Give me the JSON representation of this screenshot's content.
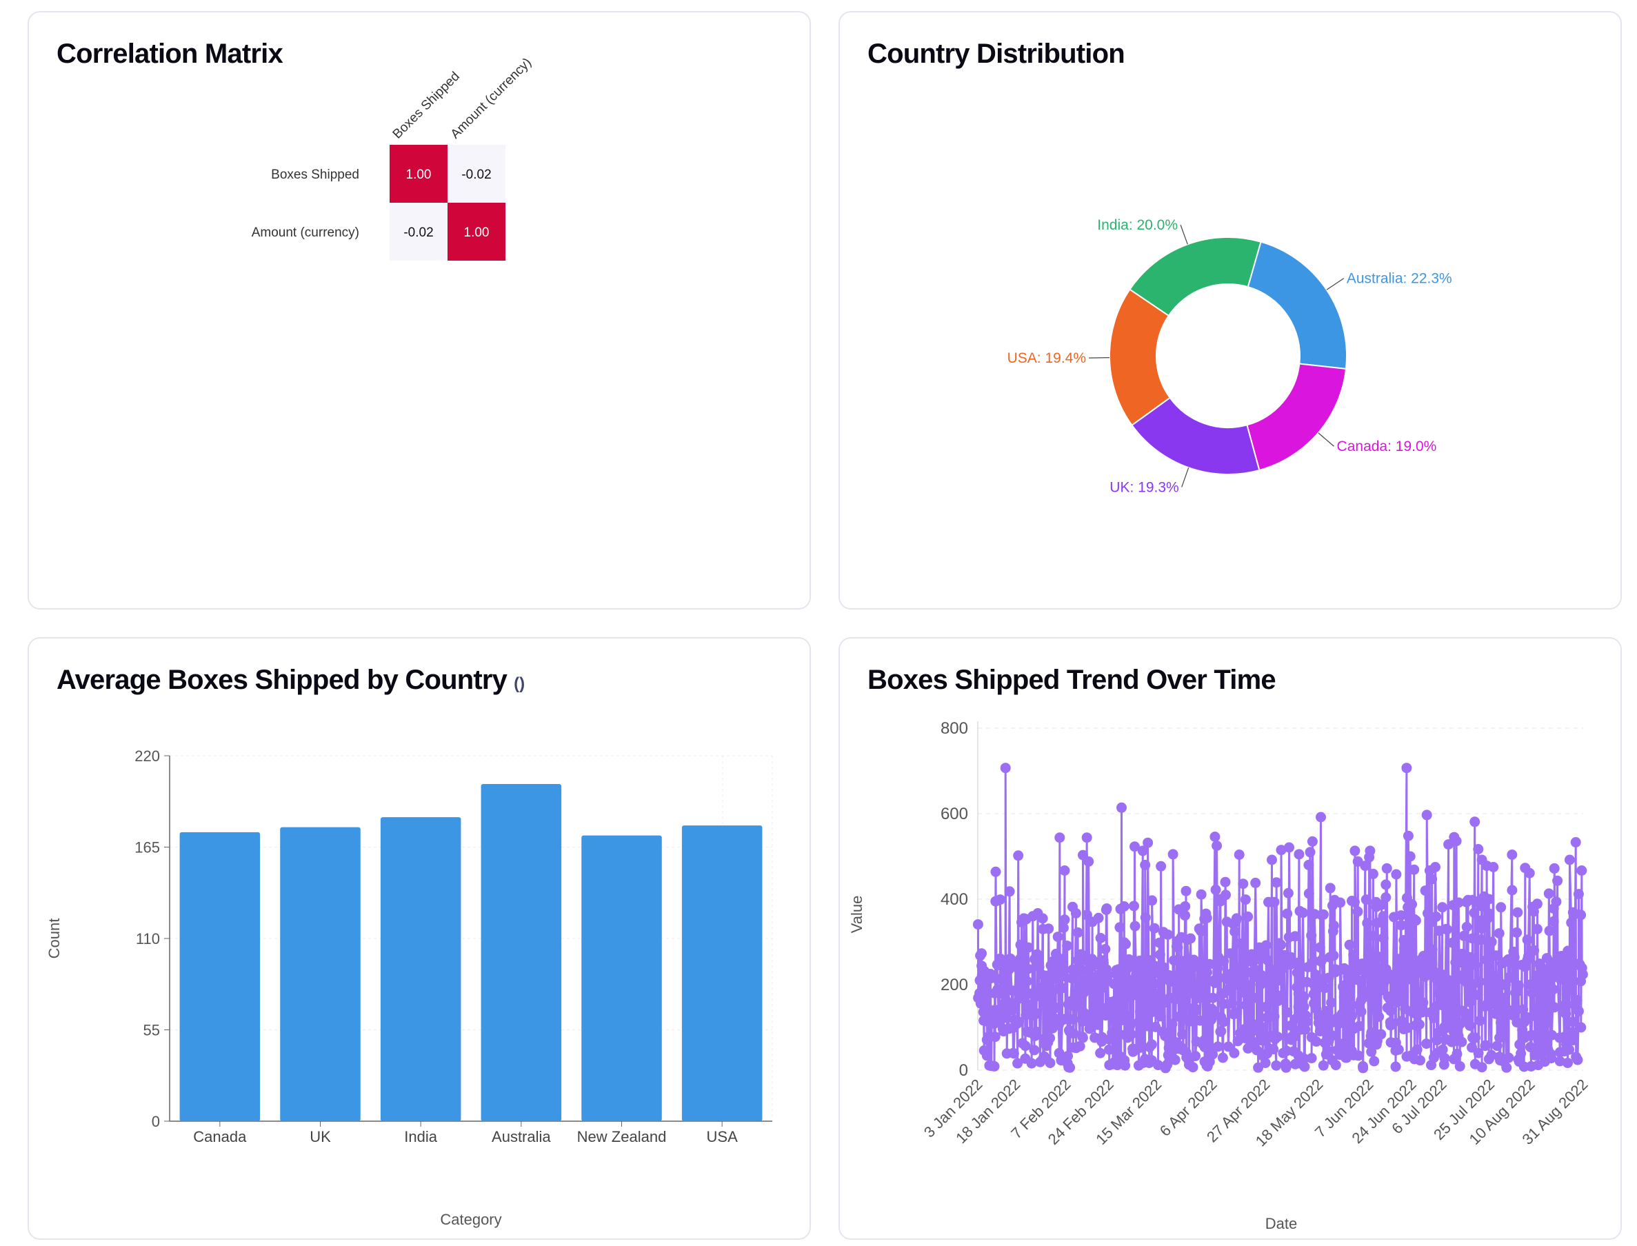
{
  "cards": {
    "correlation": {
      "title": "Correlation Matrix"
    },
    "country": {
      "title": "Country Distribution"
    },
    "average": {
      "title": "Average Boxes Shipped by Country",
      "note": "()"
    },
    "trend": {
      "title": "Boxes Shipped Trend Over Time"
    }
  },
  "chart_data": [
    {
      "type": "heatmap",
      "title": "Correlation Matrix",
      "x_labels": [
        "Boxes Shipped",
        "Amount (currency)"
      ],
      "y_labels": [
        "Boxes Shipped",
        "Amount (currency)"
      ],
      "matrix": [
        [
          1.0,
          -0.02
        ],
        [
          -0.02,
          1.0
        ]
      ],
      "cell_labels": [
        [
          "1.00",
          "-0.02"
        ],
        [
          "-0.02",
          "1.00"
        ]
      ],
      "colors": {
        "high": "#d0053a",
        "low": "#f6f5fb",
        "high_text": "#ffffff",
        "low_text": "#111111"
      }
    },
    {
      "type": "pie",
      "title": "Country Distribution",
      "donut": true,
      "slices": [
        {
          "name": "Australia",
          "value": 22.3,
          "label": "Australia: 22.3%",
          "color": "#3d96e3"
        },
        {
          "name": "Canada",
          "value": 19.0,
          "label": "Canada: 19.0%",
          "color": "#d915de"
        },
        {
          "name": "UK",
          "value": 19.3,
          "label": "UK: 19.3%",
          "color": "#8a37f0"
        },
        {
          "name": "USA",
          "value": 19.4,
          "label": "USA: 19.4%",
          "color": "#ee6524"
        },
        {
          "name": "India",
          "value": 20.0,
          "label": "India: 20.0%",
          "color": "#2ab46e"
        }
      ]
    },
    {
      "type": "bar",
      "title": "Average Boxes Shipped by Country",
      "categories": [
        "Canada",
        "UK",
        "India",
        "Australia",
        "New Zealand",
        "USA"
      ],
      "values": [
        174,
        177,
        183,
        203,
        172,
        178
      ],
      "xlabel": "Category",
      "ylabel": "Count",
      "ylim": [
        0,
        220
      ],
      "yticks": [
        0,
        55,
        110,
        165,
        220
      ],
      "color": "#3d96e3",
      "grid": true
    },
    {
      "type": "line",
      "title": "Boxes Shipped Trend Over Time",
      "xlabel": "Date",
      "ylabel": "Value",
      "ylim": [
        0,
        800
      ],
      "yticks": [
        0,
        200,
        400,
        600,
        800
      ],
      "x_range": [
        "2022-01-03",
        "2022-08-31"
      ],
      "x_tick_labels": [
        "3 Jan 2022",
        "18 Jan 2022",
        "7 Feb 2022",
        "24 Feb 2022",
        "15 Mar 2022",
        "6 Apr 2022",
        "27 Apr 2022",
        "18 May 2022",
        "7 Jun 2022",
        "24 Jun 2022",
        "6 Jul 2022",
        "25 Jul 2022",
        "10 Aug 2022",
        "31 Aug 2022"
      ],
      "x_tick_dates": [
        "2022-01-03",
        "2022-01-18",
        "2022-02-07",
        "2022-02-24",
        "2022-03-15",
        "2022-04-06",
        "2022-04-27",
        "2022-05-18",
        "2022-06-07",
        "2022-06-24",
        "2022-07-06",
        "2022-07-25",
        "2022-08-10",
        "2022-08-31"
      ],
      "color": "#9b6ef3",
      "grid": true,
      "highlighted_peaks": [
        {
          "x": "2022-01-14",
          "y": 707
        },
        {
          "x": "2022-03-01",
          "y": 614
        },
        {
          "x": "2022-05-19",
          "y": 592
        },
        {
          "x": "2022-06-22",
          "y": 707
        },
        {
          "x": "2022-06-30",
          "y": 597
        },
        {
          "x": "2022-07-19",
          "y": 581
        },
        {
          "x": "2022-04-07",
          "y": 546
        }
      ]
    }
  ]
}
